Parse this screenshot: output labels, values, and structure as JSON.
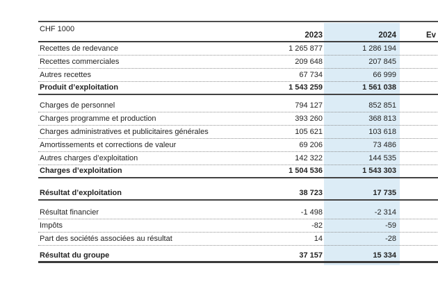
{
  "table": {
    "unit_label": "CHF 1000",
    "columns": {
      "col2023": "2023",
      "col2024": "2024",
      "col_ev": "Ev"
    },
    "highlight_color": "#dcecf6",
    "sections": [
      {
        "rows": [
          {
            "label": "Recettes de redevance",
            "v2023": "1 265 877",
            "v2024": "1 286 194",
            "type": "item"
          },
          {
            "label": "Recettes commerciales",
            "v2023": "209 648",
            "v2024": "207 845",
            "type": "item"
          },
          {
            "label": "Autres recettes",
            "v2023": "67 734",
            "v2024": "66 999",
            "type": "item"
          },
          {
            "label": "Produit d’exploitation",
            "v2023": "1 543 259",
            "v2024": "1 561 038",
            "type": "subtotal"
          }
        ]
      },
      {
        "rows": [
          {
            "label": "Charges de personnel",
            "v2023": "794 127",
            "v2024": "852 851",
            "type": "item"
          },
          {
            "label": "Charges programme et production",
            "v2023": "393 260",
            "v2024": "368 813",
            "type": "item"
          },
          {
            "label": "Charges administratives et publicitaires générales",
            "v2023": "105 621",
            "v2024": "103 618",
            "type": "item"
          },
          {
            "label": "Amortissements et corrections de valeur",
            "v2023": "69 206",
            "v2024": "73 486",
            "type": "item"
          },
          {
            "label": "Autres charges d’exploitation",
            "v2023": "142 322",
            "v2024": "144 535",
            "type": "item"
          },
          {
            "label": "Charges d’exploitation",
            "v2023": "1 504 536",
            "v2024": "1 543 303",
            "type": "subtotal"
          }
        ]
      },
      {
        "rows": [
          {
            "label": "Résultat d’exploitation",
            "v2023": "38 723",
            "v2024": "17 735",
            "type": "subtotal"
          }
        ]
      },
      {
        "rows": [
          {
            "label": "Résultat financier",
            "v2023": "-1 498",
            "v2024": "-2 314",
            "type": "item"
          },
          {
            "label": "Impôts",
            "v2023": "-82",
            "v2024": "-59",
            "type": "item"
          },
          {
            "label": "Part des sociétés associées au résultat",
            "v2023": "14",
            "v2024": "-28",
            "type": "item"
          }
        ]
      },
      {
        "rows": [
          {
            "label": "Résultat du groupe",
            "v2023": "37 157",
            "v2024": "15 334",
            "type": "grand"
          }
        ]
      }
    ]
  }
}
